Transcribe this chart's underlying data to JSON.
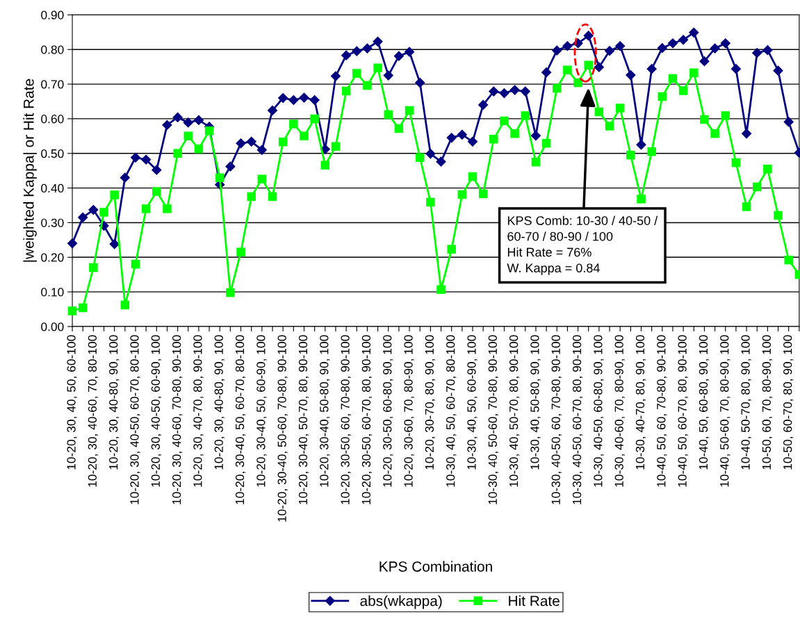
{
  "chart_data": {
    "type": "line",
    "xlabel": "KPS Combination",
    "ylabel": "|weighted Kappa| or Hit Rate",
    "categories": [
      "10-20, 30, 40, 50, 60-100",
      null,
      "10-20, 30, 40-60, 70, 80-100",
      null,
      "10-20, 30, 40-80, 90, 100",
      null,
      "10-20, 30, 40-50, 60-70, 80-100",
      null,
      "10-20, 30, 40-50, 60-90, 100",
      null,
      "10-20, 30, 40-60, 70-80, 90-100",
      null,
      "10-20, 30, 40-70, 80, 90-100",
      null,
      "10-20, 30, 40-80, 90, 100",
      null,
      "10-20, 30-40, 50, 60-70, 80-100",
      null,
      "10-20, 30-40, 50, 60-90, 100",
      null,
      "10-20, 30-40, 50-60, 70-80, 90-100",
      null,
      "10-20, 30-40, 50-70, 80, 90-100",
      null,
      "10-20, 30-40, 50-80, 90, 100",
      null,
      "10-20, 30-50, 60, 70-80, 90-100",
      null,
      "10-20, 30-50, 60-70, 80, 90-100",
      null,
      "10-20, 30-50, 60-80, 90, 100",
      null,
      "10-20, 30-60, 70, 80-90, 100",
      null,
      "10-20, 30-70, 80, 90, 100",
      null,
      "10-30, 40, 50, 60-70, 80-100",
      null,
      "10-30, 40, 50, 60-90, 100",
      null,
      "10-30, 40, 50-60, 70-80, 90-100",
      null,
      "10-30, 40, 50-70, 80, 90-100",
      null,
      "10-30, 40, 50-80, 90, 100",
      null,
      "10-30, 40-50, 60, 70-80, 90-100",
      null,
      "10-30, 40-50, 60-70, 80, 90-100",
      null,
      "10-30, 40-50, 60-80, 90, 100",
      null,
      "10-30, 40-60, 70, 80-90, 100",
      null,
      "10-30, 40-70, 80, 90, 100",
      null,
      "10-40, 50, 60, 70-80, 90-100",
      null,
      "10-40, 50, 60-70, 80, 90-100",
      null,
      "10-40, 50, 60-80, 90, 100",
      null,
      "10-40, 50-60, 70, 80-90, 100",
      null,
      "10-40, 50-70, 80, 90, 100",
      null,
      "10-50, 60, 70, 80-90, 100",
      null,
      "10-50, 60-70, 80, 90, 100",
      null
    ],
    "series": [
      {
        "name": "abs(wkappa)",
        "color": "#000080",
        "marker": "diamond",
        "values": [
          0.24,
          0.315,
          0.337,
          0.291,
          0.238,
          0.43,
          0.488,
          0.482,
          0.452,
          0.582,
          0.604,
          0.589,
          0.596,
          0.577,
          0.41,
          0.462,
          0.529,
          0.534,
          0.51,
          0.624,
          0.66,
          0.654,
          0.661,
          0.654,
          0.512,
          0.723,
          0.783,
          0.795,
          0.803,
          0.823,
          0.725,
          0.781,
          0.793,
          0.704,
          0.499,
          0.476,
          0.545,
          0.554,
          0.534,
          0.64,
          0.679,
          0.674,
          0.683,
          0.679,
          0.551,
          0.734,
          0.797,
          0.81,
          0.818,
          0.84,
          0.749,
          0.796,
          0.81,
          0.726,
          0.525,
          0.744,
          0.804,
          0.818,
          0.828,
          0.849,
          0.766,
          0.803,
          0.818,
          0.744,
          0.557,
          0.79,
          0.798,
          0.739,
          0.591,
          0.502
        ]
      },
      {
        "name": "Hit Rate",
        "color": "#00ff00",
        "marker": "square",
        "values": [
          0.045,
          0.054,
          0.17,
          0.33,
          0.38,
          0.062,
          0.18,
          0.34,
          0.39,
          0.34,
          0.5,
          0.55,
          0.513,
          0.565,
          0.43,
          0.098,
          0.215,
          0.375,
          0.426,
          0.375,
          0.533,
          0.585,
          0.55,
          0.6,
          0.466,
          0.52,
          0.68,
          0.731,
          0.696,
          0.747,
          0.612,
          0.572,
          0.624,
          0.488,
          0.359,
          0.107,
          0.223,
          0.381,
          0.433,
          0.383,
          0.541,
          0.594,
          0.557,
          0.609,
          0.475,
          0.529,
          0.688,
          0.741,
          0.704,
          0.755,
          0.62,
          0.579,
          0.631,
          0.495,
          0.368,
          0.505,
          0.664,
          0.716,
          0.681,
          0.733,
          0.598,
          0.557,
          0.609,
          0.473,
          0.346,
          0.403,
          0.455,
          0.321,
          0.192,
          0.15
        ]
      }
    ],
    "ylim": [
      0,
      0.9
    ],
    "yticks": [
      {
        "value": 0,
        "label": "0.00"
      },
      {
        "value": 0.1,
        "label": "0.10"
      },
      {
        "value": 0.2,
        "label": "0.20"
      },
      {
        "value": 0.3,
        "label": "0.30"
      },
      {
        "value": 0.4,
        "label": "0.40"
      },
      {
        "value": 0.5,
        "label": "0.50"
      },
      {
        "value": 0.6,
        "label": "0.60"
      },
      {
        "value": 0.7,
        "label": "0.70"
      },
      {
        "value": 0.8,
        "label": "0.80"
      },
      {
        "value": 0.9,
        "label": "0.90"
      }
    ],
    "grid": "y",
    "legend": "bottom",
    "line_style": "solid",
    "annotations": [
      "KPS Comb: 10-30 / 40-50 /\n60-70 / 80-90 / 100\nHit Rate = 76%\nW. Kappa = 0.84"
    ]
  }
}
